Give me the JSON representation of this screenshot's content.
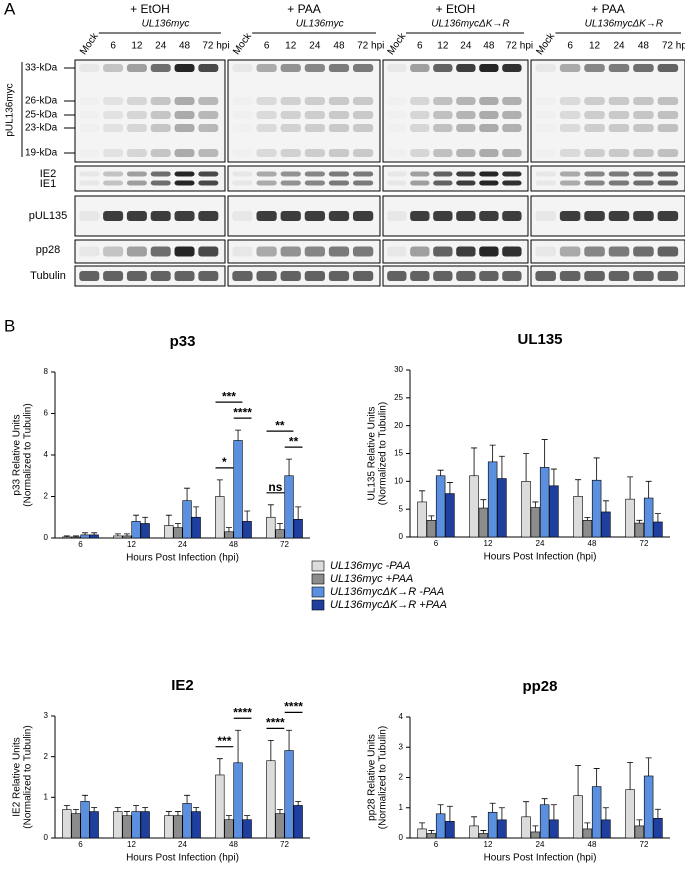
{
  "panel_labels": [
    "A",
    "B"
  ],
  "blot": {
    "panels": [
      {
        "treatment": "+ EtOH",
        "strain": "UL136myc",
        "lanes": [
          "Mock",
          "6",
          "12",
          "24",
          "48",
          "72 hpi"
        ]
      },
      {
        "treatment": "+ PAA",
        "strain": "UL136myc",
        "lanes": [
          "Mock",
          "6",
          "12",
          "24",
          "48",
          "72 hpi"
        ]
      },
      {
        "treatment": "+ EtOH",
        "strain": "UL136mycΔK→R",
        "lanes": [
          "Mock",
          "6",
          "12",
          "24",
          "48",
          "72 hpi"
        ]
      },
      {
        "treatment": "+ PAA",
        "strain": "UL136mycΔK→R",
        "lanes": [
          "Mock",
          "6",
          "12",
          "24",
          "48",
          "72 hpi"
        ]
      }
    ],
    "protein_label": "pUL136myc",
    "markers": [
      "33-kDa",
      "26-kDa",
      "25-kDa",
      "23-kDa",
      "19-kDa"
    ],
    "rows": [
      "IE2",
      "IE1",
      "pUL135",
      "pp28",
      "Tubulin"
    ]
  },
  "chart_data": [
    {
      "type": "bar",
      "title": "p33",
      "ylabel": [
        "p33 Relative Units",
        "(Normalized to Tubulin)"
      ],
      "xlabel": "Hours Post Infection (hpi)",
      "categories": [
        "6",
        "12",
        "24",
        "48",
        "72"
      ],
      "ylim": [
        0,
        8
      ],
      "yticks": [
        0,
        2,
        4,
        6,
        8
      ],
      "series": [
        {
          "name": "UL136myc -PAA",
          "color": "#dcdcdc",
          "values": [
            0.05,
            0.1,
            0.6,
            2.0,
            1.0
          ],
          "errors": [
            0.05,
            0.1,
            0.5,
            0.8,
            0.6
          ]
        },
        {
          "name": "UL136myc +PAA",
          "color": "#8c8c8c",
          "values": [
            0.05,
            0.1,
            0.5,
            0.3,
            0.4
          ],
          "errors": [
            0.05,
            0.1,
            0.2,
            0.2,
            0.3
          ]
        },
        {
          "name": "UL136mycΔK→R -PAA",
          "color": "#5b8fe0",
          "values": [
            0.15,
            0.8,
            1.8,
            4.7,
            3.0
          ],
          "errors": [
            0.1,
            0.3,
            0.6,
            0.5,
            0.8
          ]
        },
        {
          "name": "UL136mycΔK→R +PAA",
          "color": "#1f3f9e",
          "values": [
            0.15,
            0.7,
            1.0,
            0.8,
            0.9
          ],
          "errors": [
            0.1,
            0.3,
            0.5,
            0.5,
            0.6
          ]
        }
      ],
      "significance": [
        {
          "category": "48",
          "series": [
            0,
            1
          ],
          "label": "*"
        },
        {
          "category": "48",
          "series": [
            2,
            3
          ],
          "label": "****"
        },
        {
          "category": "48",
          "series": [
            0,
            2
          ],
          "label": "***"
        },
        {
          "category": "72",
          "series": [
            0,
            1
          ],
          "label": "ns"
        },
        {
          "category": "72",
          "series": [
            2,
            3
          ],
          "label": "**"
        },
        {
          "category": "72",
          "series": [
            0,
            2
          ],
          "label": "**"
        }
      ]
    },
    {
      "type": "bar",
      "title": "UL135",
      "ylabel": [
        "UL135 Relative Units",
        "(Normalized to Tubulin)"
      ],
      "xlabel": "Hours Post Infection (hpi)",
      "categories": [
        "6",
        "12",
        "24",
        "48",
        "72"
      ],
      "ylim": [
        0,
        30
      ],
      "yticks": [
        0,
        5,
        10,
        15,
        20,
        25,
        30
      ],
      "series": [
        {
          "color": "#dcdcdc",
          "values": [
            6.3,
            11,
            10,
            7.3,
            6.8
          ],
          "errors": [
            2,
            5,
            5,
            3,
            4
          ]
        },
        {
          "color": "#8c8c8c",
          "values": [
            3,
            5.2,
            5.3,
            3,
            2.5
          ],
          "errors": [
            0.8,
            1.5,
            1,
            0.5,
            0.5
          ]
        },
        {
          "color": "#5b8fe0",
          "values": [
            11,
            13.5,
            12.5,
            10.2,
            7
          ],
          "errors": [
            1,
            3,
            5,
            4,
            3
          ]
        },
        {
          "color": "#1f3f9e",
          "values": [
            7.8,
            10.5,
            9.2,
            4.5,
            2.7
          ],
          "errors": [
            2,
            4,
            3,
            2,
            1.5
          ]
        }
      ],
      "significance": []
    },
    {
      "type": "bar",
      "title": "IE2",
      "ylabel": [
        "IE2 Relative Units",
        "(Normalized to Tubulin)"
      ],
      "xlabel": "Hours Post Infection (hpi)",
      "categories": [
        "6",
        "12",
        "24",
        "48",
        "72"
      ],
      "ylim": [
        0,
        3
      ],
      "yticks": [
        0,
        1,
        2,
        3
      ],
      "series": [
        {
          "color": "#dcdcdc",
          "values": [
            0.7,
            0.65,
            0.55,
            1.55,
            1.9
          ],
          "errors": [
            0.1,
            0.1,
            0.1,
            0.4,
            0.5
          ]
        },
        {
          "color": "#8c8c8c",
          "values": [
            0.6,
            0.55,
            0.55,
            0.45,
            0.6
          ],
          "errors": [
            0.1,
            0.1,
            0.1,
            0.1,
            0.1
          ]
        },
        {
          "color": "#5b8fe0",
          "values": [
            0.9,
            0.65,
            0.85,
            1.85,
            2.15
          ],
          "errors": [
            0.15,
            0.15,
            0.2,
            0.8,
            0.5
          ]
        },
        {
          "color": "#1f3f9e",
          "values": [
            0.65,
            0.65,
            0.65,
            0.45,
            0.8
          ],
          "errors": [
            0.1,
            0.1,
            0.1,
            0.1,
            0.1
          ]
        }
      ],
      "significance": [
        {
          "category": "48",
          "series": [
            0,
            1
          ],
          "label": "***"
        },
        {
          "category": "48",
          "series": [
            2,
            3
          ],
          "label": "****"
        },
        {
          "category": "72",
          "series": [
            0,
            1
          ],
          "label": "****"
        },
        {
          "category": "72",
          "series": [
            2,
            3
          ],
          "label": "****"
        }
      ]
    },
    {
      "type": "bar",
      "title": "pp28",
      "ylabel": [
        "pp28 Relative Units",
        "(Normalized to Tubulin)"
      ],
      "xlabel": "Hours Post Infection (hpi)",
      "categories": [
        "6",
        "12",
        "24",
        "48",
        "72"
      ],
      "ylim": [
        0,
        4
      ],
      "yticks": [
        0,
        1,
        2,
        3,
        4
      ],
      "series": [
        {
          "color": "#dcdcdc",
          "values": [
            0.3,
            0.4,
            0.7,
            1.4,
            1.6
          ],
          "errors": [
            0.2,
            0.3,
            0.5,
            1.0,
            0.9
          ]
        },
        {
          "color": "#8c8c8c",
          "values": [
            0.15,
            0.15,
            0.2,
            0.3,
            0.4
          ],
          "errors": [
            0.1,
            0.1,
            0.2,
            0.2,
            0.2
          ]
        },
        {
          "color": "#5b8fe0",
          "values": [
            0.8,
            0.85,
            1.1,
            1.7,
            2.05
          ],
          "errors": [
            0.3,
            0.3,
            0.2,
            0.6,
            0.6
          ]
        },
        {
          "color": "#1f3f9e",
          "values": [
            0.55,
            0.6,
            0.6,
            0.6,
            0.65
          ],
          "errors": [
            0.5,
            0.4,
            0.5,
            0.4,
            0.3
          ]
        }
      ],
      "significance": []
    }
  ]
}
